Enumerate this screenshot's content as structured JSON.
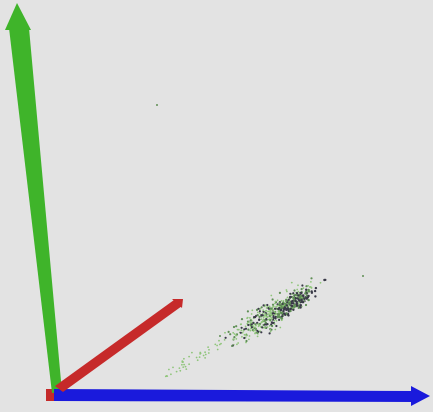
{
  "viewer": {
    "background_color": "#e3e3e3",
    "origin_marker_color": "#c42a2a",
    "axes": [
      {
        "name": "x-axis",
        "color": "#c62a2a"
      },
      {
        "name": "y-axis",
        "color": "#3fb42a"
      },
      {
        "name": "z-axis",
        "color": "#1a1adc"
      }
    ],
    "point_colors": {
      "light": "#8fc57a",
      "medium": "#5f8f55",
      "dark": "#3a3a48"
    }
  }
}
